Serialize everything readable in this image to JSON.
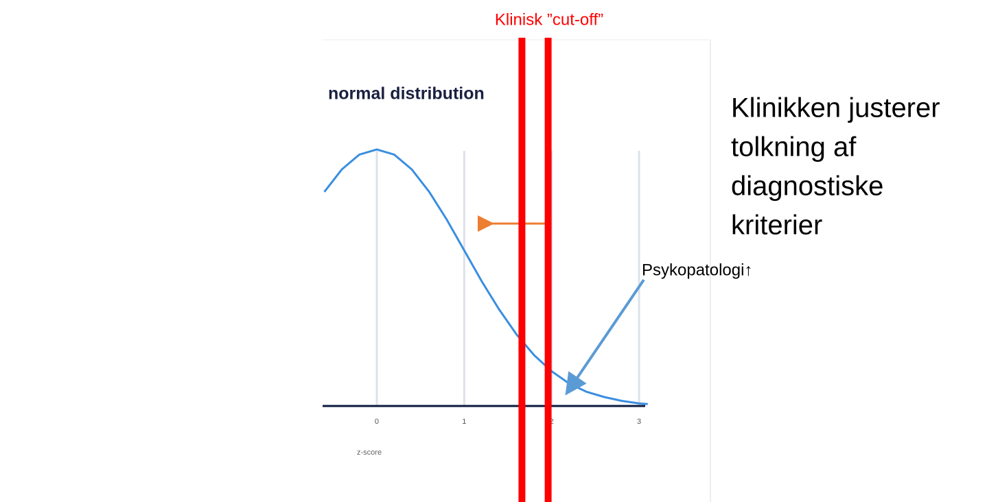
{
  "chart_data": {
    "type": "line",
    "title": "normal distribution",
    "xlabel": "z-score",
    "x": [
      -0.6,
      -0.4,
      -0.2,
      0,
      0.2,
      0.4,
      0.6,
      0.8,
      1.0,
      1.2,
      1.4,
      1.6,
      1.8,
      2.0,
      2.2,
      2.4,
      2.6,
      2.8,
      3.0,
      3.1
    ],
    "values": [
      0.333,
      0.368,
      0.391,
      0.399,
      0.391,
      0.368,
      0.333,
      0.29,
      0.242,
      0.194,
      0.15,
      0.111,
      0.079,
      0.054,
      0.035,
      0.022,
      0.014,
      0.008,
      0.004,
      0.003
    ],
    "color": "#3a8ee0",
    "xlim": [
      -0.62,
      3.07
    ],
    "xticks": [
      0,
      1,
      2,
      3
    ],
    "ylim": [
      0,
      0.4
    ],
    "grid": true,
    "cutoffs": [
      1.66,
      1.96
    ],
    "cutoff_color": "#ff0000"
  },
  "slide": {
    "cutoff_label": "Klinisk ”cut-off”",
    "heading_lines": [
      "Klinikken justerer",
      "tolkning af",
      "diagnostiske",
      "kriterier"
    ],
    "arrow_label": "Psykopatologi↑"
  }
}
